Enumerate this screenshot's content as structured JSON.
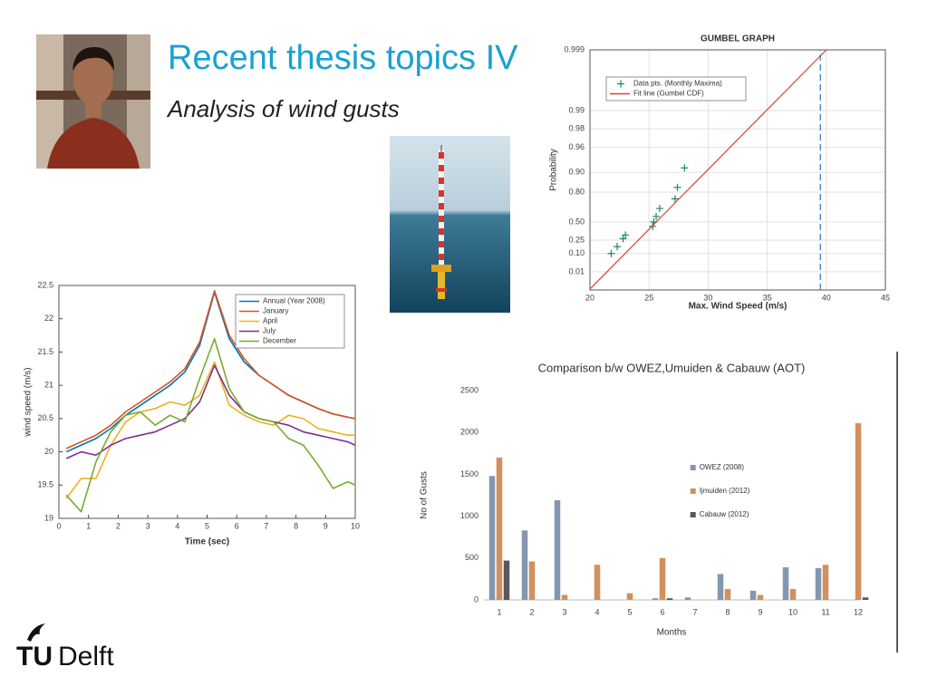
{
  "slide": {
    "title": "Recent thesis topics IV",
    "subtitle": "Analysis of wind gusts",
    "logo": {
      "tu": "TU",
      "delft": "Delft"
    }
  },
  "chart_data": [
    {
      "type": "scatter",
      "title": "GUMBEL GRAPH",
      "x_label": "Max. Wind Speed (m/s)",
      "y_label": "Probability",
      "yscale": "gumbel",
      "xlim": [
        20,
        45
      ],
      "xticks": [
        20,
        25,
        30,
        35,
        40,
        45
      ],
      "ylim": [
        0.0001,
        0.999
      ],
      "yticks": [
        0.01,
        {
          "value": 0.1,
          "label": "0.10"
        },
        0.25,
        {
          "value": 0.5,
          "label": "0.50"
        },
        {
          "value": 0.8,
          "label": "0.80"
        },
        {
          "value": 0.9,
          "label": "0.90"
        },
        0.96,
        0.98,
        0.99,
        0.999
      ],
      "grid": true,
      "legend": "upper left",
      "series": [
        {
          "name": "Data pts. (Monthly Maxima)",
          "mode": "markers",
          "color": "#1a8a5a",
          "x": [
            21.8,
            22.3,
            22.8,
            23.0,
            25.3,
            25.4,
            25.6,
            25.9,
            27.2,
            27.4,
            28.0
          ],
          "values": [
            0.1,
            0.17,
            0.27,
            0.32,
            0.44,
            0.5,
            0.57,
            0.66,
            0.75,
            0.83,
            0.915
          ]
        },
        {
          "name": "Fit line (Gumbel CDF)",
          "mode": "lines",
          "color": "#d9403a",
          "x": [
            20,
            40
          ],
          "values": [
            0.00014,
            0.999
          ]
        }
      ],
      "reference_lines": [
        {
          "x": 39.5,
          "color": "#4a86c5"
        }
      ]
    },
    {
      "type": "line",
      "x_label": "Time (sec)",
      "y_label": "wind speed (m/s)",
      "xlim": [
        0,
        10
      ],
      "xticks": [
        0,
        1,
        2,
        3,
        4,
        5,
        6,
        7,
        8,
        9,
        10
      ],
      "ylim": [
        19,
        22.5
      ],
      "yticks": [
        19,
        19.5,
        20,
        20.5,
        21,
        21.5,
        22,
        22.5
      ],
      "grid": false,
      "legend": "upper right",
      "x": [
        0.25,
        0.75,
        1.25,
        1.75,
        2.25,
        2.75,
        3.25,
        3.75,
        4.25,
        4.75,
        5.25,
        5.75,
        6.25,
        6.75,
        7.25,
        7.75,
        8.25,
        8.75,
        9.25,
        9.75,
        10
      ],
      "series": [
        {
          "name": "Annual (Year 2008)",
          "color": "#0072bd",
          "values": [
            20.0,
            20.1,
            20.2,
            20.35,
            20.55,
            20.7,
            20.85,
            21.0,
            21.2,
            21.6,
            22.4,
            21.7,
            21.35,
            21.15,
            21.0,
            20.85,
            20.75,
            20.65,
            20.57,
            20.52,
            20.5
          ]
        },
        {
          "name": "January",
          "color": "#d95319",
          "values": [
            20.05,
            20.15,
            20.25,
            20.4,
            20.6,
            20.75,
            20.9,
            21.05,
            21.25,
            21.65,
            22.42,
            21.75,
            21.4,
            21.15,
            21.0,
            20.85,
            20.75,
            20.65,
            20.57,
            20.52,
            20.5
          ]
        },
        {
          "name": "April",
          "color": "#edb120",
          "values": [
            19.3,
            19.6,
            19.6,
            20.1,
            20.45,
            20.6,
            20.65,
            20.75,
            20.7,
            20.85,
            21.35,
            20.7,
            20.55,
            20.45,
            20.4,
            20.55,
            20.5,
            20.35,
            20.3,
            20.25,
            20.25
          ]
        },
        {
          "name": "July",
          "color": "#7e2f8e",
          "values": [
            19.9,
            20.0,
            19.95,
            20.1,
            20.2,
            20.25,
            20.3,
            20.4,
            20.5,
            20.75,
            21.3,
            20.85,
            20.6,
            20.5,
            20.45,
            20.4,
            20.3,
            20.25,
            20.2,
            20.15,
            20.1
          ]
        },
        {
          "name": "December",
          "color": "#77ac30",
          "values": [
            19.35,
            19.1,
            19.85,
            20.3,
            20.55,
            20.6,
            20.4,
            20.55,
            20.45,
            21.1,
            21.7,
            20.95,
            20.6,
            20.5,
            20.45,
            20.2,
            20.1,
            19.8,
            19.45,
            19.55,
            19.5
          ]
        }
      ]
    },
    {
      "type": "bar",
      "title": "Comparison b/w OWEZ,Umuiden & Cabauw (AOT)",
      "x_label": "Months",
      "y_label": "No of Gusts",
      "categories": [
        "1",
        "2",
        "3",
        "4",
        "5",
        "6",
        "7",
        "8",
        "9",
        "10",
        "11",
        "12"
      ],
      "ylim": [
        0,
        2500
      ],
      "yticks": [
        0,
        500,
        1000,
        1500,
        2000,
        2500
      ],
      "grid": false,
      "legend": "center right",
      "series": [
        {
          "name": "OWEZ (2008)",
          "color": "#8497b0",
          "values": [
            1480,
            830,
            1190,
            0,
            0,
            20,
            30,
            310,
            110,
            390,
            380,
            0
          ]
        },
        {
          "name": "Ijmuiden (2012)",
          "color": "#d0905f",
          "values": [
            1700,
            460,
            60,
            420,
            80,
            500,
            0,
            130,
            60,
            130,
            420,
            2110
          ]
        },
        {
          "name": "Cabauw (2012)",
          "color": "#595959",
          "values": [
            470,
            0,
            0,
            0,
            0,
            20,
            0,
            0,
            0,
            0,
            0,
            30
          ]
        }
      ]
    }
  ]
}
